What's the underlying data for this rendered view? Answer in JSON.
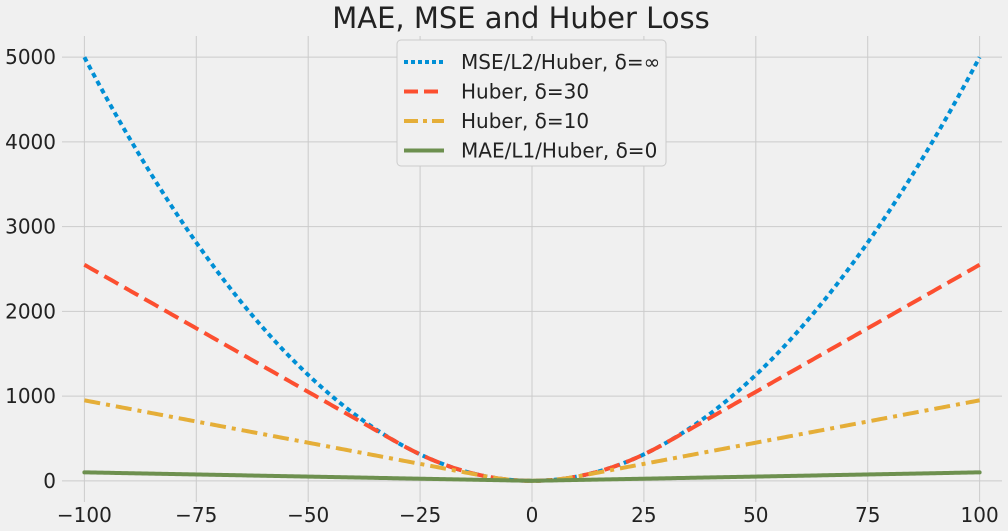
{
  "chart_data": {
    "type": "line",
    "title": "MAE, MSE and Huber Loss",
    "xlabel": "",
    "ylabel": "",
    "xlim": [
      -105,
      105
    ],
    "ylim": [
      -250,
      5250
    ],
    "x_ticks": [
      -100,
      -75,
      -50,
      -25,
      0,
      25,
      50,
      75,
      100
    ],
    "x_tick_labels": [
      "−100",
      "−75",
      "−50",
      "−25",
      "0",
      "25",
      "50",
      "75",
      "100"
    ],
    "y_ticks": [
      0,
      1000,
      2000,
      3000,
      4000,
      5000
    ],
    "y_tick_labels": [
      "0",
      "1000",
      "2000",
      "3000",
      "4000",
      "5000"
    ],
    "grid": true,
    "legend_position": "top-center",
    "x_range": [
      -100,
      100
    ],
    "series": [
      {
        "name": "MSE/L2/Huber, δ=∞",
        "delta": "inf",
        "color": "#008fd5",
        "style": "dotted"
      },
      {
        "name": "Huber, δ=30",
        "delta": 30,
        "color": "#fc4f30",
        "style": "dashed"
      },
      {
        "name": "Huber, δ=10",
        "delta": 10,
        "color": "#e5ae38",
        "style": "dashdot"
      },
      {
        "name": "MAE/L1/Huber, δ=0",
        "delta": 0,
        "color": "#6d904f",
        "style": "solid"
      }
    ],
    "background": "#f0f0f0",
    "grid_color": "#cbcbcb"
  }
}
